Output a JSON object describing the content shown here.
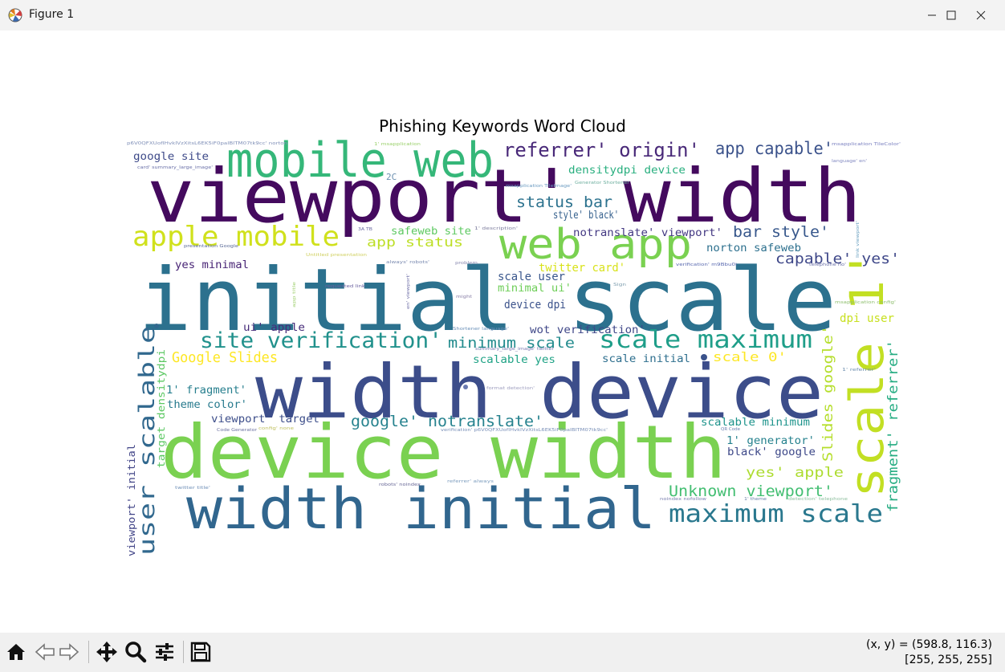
{
  "window": {
    "title": "Figure 1",
    "controls": [
      "minimize",
      "maximize",
      "close"
    ]
  },
  "figure": {
    "title": "Phishing Keywords Word Cloud"
  },
  "wordcloud": {
    "words": [
      {
        "text": "viewport' width",
        "color": "#440a5e"
      },
      {
        "text": "initial scale",
        "color": "#2c718e"
      },
      {
        "text": "width device",
        "color": "#3c4d8a"
      },
      {
        "text": "device width",
        "color": "#7ad151"
      },
      {
        "text": "width initial",
        "color": "#31668e"
      },
      {
        "text": "mobile web",
        "color": "#35b779"
      },
      {
        "text": "web app",
        "color": "#7ad151"
      },
      {
        "text": "scale 1'",
        "color": "#c2df23"
      },
      {
        "text": "apple mobile",
        "color": "#d0e11c"
      },
      {
        "text": "referrer' origin'",
        "color": "#482878"
      },
      {
        "text": "app capable'",
        "color": "#3b528b"
      },
      {
        "text": "site verification'",
        "color": "#21918c"
      },
      {
        "text": "scale maximum",
        "color": "#1f9e89"
      },
      {
        "text": "maximum scale",
        "color": "#2a788e"
      },
      {
        "text": "user scalable",
        "color": "#31688e"
      },
      {
        "text": "google' notranslate'",
        "color": "#26828e"
      },
      {
        "text": "Google Slides",
        "color": "#fde725"
      },
      {
        "text": "status bar",
        "color": "#2c728e"
      },
      {
        "text": "bar style'",
        "color": "#38588c"
      },
      {
        "text": "capable' yes'",
        "color": "#3f4889"
      },
      {
        "text": "Unknown viewport'",
        "color": "#42be71"
      },
      {
        "text": "fragment' referrer'",
        "color": "#25ac82"
      },
      {
        "text": "Slides google'",
        "color": "#b5de2b"
      },
      {
        "text": "minimum scale",
        "color": "#228b8d"
      },
      {
        "text": "app status",
        "color": "#bddf26"
      },
      {
        "text": "yes' apple",
        "color": "#addc30"
      },
      {
        "text": "google site",
        "color": "#3e4a89"
      },
      {
        "text": "densitydpi device",
        "color": "#29af7f"
      },
      {
        "text": "style' black'",
        "color": "#35608d"
      },
      {
        "text": "notranslate' viewport'",
        "color": "#443983"
      },
      {
        "text": "norton safeweb",
        "color": "#2d708e"
      },
      {
        "text": "safeweb site",
        "color": "#5ec962"
      },
      {
        "text": "twitter card'",
        "color": "#d8e219"
      },
      {
        "text": "scale user",
        "color": "#39568c"
      },
      {
        "text": "minimal ui'",
        "color": "#6ece58"
      },
      {
        "text": "device dpi",
        "color": "#3b528b"
      },
      {
        "text": "wot verification'",
        "color": "#3f4788"
      },
      {
        "text": "yes minimal",
        "color": "#482475"
      },
      {
        "text": "ui' apple",
        "color": "#472c7a"
      },
      {
        "text": "scale initial",
        "color": "#2e6f8e"
      },
      {
        "text": "scale 0'",
        "color": "#fde725"
      },
      {
        "text": "dpi user",
        "color": "#c8e020"
      },
      {
        "text": "scalable yes",
        "color": "#20a386"
      },
      {
        "text": "1' fragment'",
        "color": "#277f8e"
      },
      {
        "text": "theme color'",
        "color": "#297b8e"
      },
      {
        "text": "viewport' target",
        "color": "#3d4e8a"
      },
      {
        "text": "target densitydpi",
        "color": "#5cc863"
      },
      {
        "text": "viewport' initial",
        "color": "#414487"
      },
      {
        "text": "scalable minimum",
        "color": "#1f948c"
      },
      {
        "text": "1' generator'",
        "color": "#26828e"
      },
      {
        "text": "black' google",
        "color": "#3e4989"
      },
      {
        "text": "2C",
        "color": "#6b8fb0"
      },
      {
        "text": "p6V0QFXUofIHvkIVzXitsL6EK5iF0paIBITM07tk9cc' norton",
        "color": "#8090b8"
      },
      {
        "text": "1' msapplication",
        "color": "#9ad06a"
      },
      {
        "text": "msapplication TileColor'",
        "color": "#7a80c0"
      },
      {
        "text": "card' summary_large_image'",
        "color": "#6a70a8"
      },
      {
        "text": "language' en'",
        "color": "#8088c0"
      },
      {
        "text": "Generator Shortener",
        "color": "#70b0a0"
      },
      {
        "text": "msapplication TileImage'",
        "color": "#6a9ac0"
      },
      {
        "text": "link viewport'",
        "color": "#6aa0c0"
      },
      {
        "text": "1' description'",
        "color": "#8080a0"
      },
      {
        "text": "presentation Google",
        "color": "#5a6a98"
      },
      {
        "text": "Untitled presentation",
        "color": "#d0d060"
      },
      {
        "text": "verification' m9Bbu0i",
        "color": "#5a6ab0"
      },
      {
        "text": "always' robots'",
        "color": "#7a8ab0"
      },
      {
        "text": "problem",
        "color": "#8a8ab0"
      },
      {
        "text": "telephone no'",
        "color": "#6a70a8"
      },
      {
        "text": "requested link",
        "color": "#6a60a0"
      },
      {
        "text": "Sign",
        "color": "#80a0b0"
      },
      {
        "text": "might",
        "color": "#8a80a8"
      },
      {
        "text": "msapplication config'",
        "color": "#90c070"
      },
      {
        "text": "app title",
        "color": "#a0d070"
      },
      {
        "text": "en' viewport'",
        "color": "#7070a8"
      },
      {
        "text": "Shortener language'",
        "color": "#6a90b8"
      },
      {
        "text": "summary_large_image' twitter",
        "color": "#7a7ab0"
      },
      {
        "text": "format detection'",
        "color": "#a0a0c0"
      },
      {
        "text": "1' referrer'",
        "color": "#7090b0"
      },
      {
        "text": "verification' p6V0QFXUofIHvkIVzXitsL6EK5iF0paIBITM07tk9cc'",
        "color": "#7a90b8"
      },
      {
        "text": "Code Generator",
        "color": "#6a70a0"
      },
      {
        "text": "config' none",
        "color": "#c0c060"
      },
      {
        "text": "QR Code",
        "color": "#6a80b0"
      },
      {
        "text": "twitter title'",
        "color": "#7090b8"
      },
      {
        "text": "robots' noindex",
        "color": "#6a6a98"
      },
      {
        "text": "referrer' always",
        "color": "#80a0c0"
      },
      {
        "text": "noindex nofollow",
        "color": "#7a80b0"
      },
      {
        "text": "1' theme",
        "color": "#6a80a8"
      },
      {
        "text": "detection' telephone",
        "color": "#90c0a0"
      },
      {
        "text": "3A TB",
        "color": "#6a6aa0"
      }
    ]
  },
  "toolbar": {
    "buttons": [
      {
        "name": "home-button",
        "icon": "home-icon"
      },
      {
        "name": "back-button",
        "icon": "back-arrow-icon"
      },
      {
        "name": "forward-button",
        "icon": "forward-arrow-icon"
      },
      {
        "name": "pan-button",
        "icon": "move-icon"
      },
      {
        "name": "zoom-button",
        "icon": "zoom-icon"
      },
      {
        "name": "configure-subplots-button",
        "icon": "sliders-icon"
      },
      {
        "name": "save-button",
        "icon": "save-icon"
      }
    ]
  },
  "status": {
    "coords": "(x, y) = (598.8, 116.3)",
    "rgb": "[255, 255, 255]"
  }
}
